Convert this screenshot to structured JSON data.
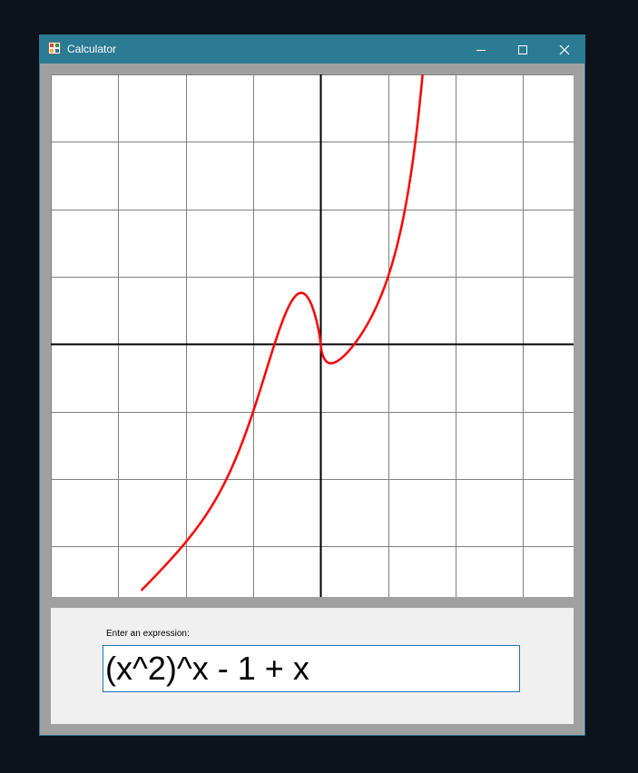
{
  "window": {
    "title": "Calculator",
    "titlebar_color": "#2b7b94",
    "controls": {
      "minimize": "minimize-icon",
      "maximize": "maximize-icon",
      "close": "close-icon"
    }
  },
  "graph": {
    "x_range": [
      -4,
      3.75
    ],
    "y_range": [
      -3.75,
      4
    ],
    "grid": true,
    "grid_color": "#808080",
    "axis_color": "#000000",
    "curve_color": "#ff0000"
  },
  "chart_data": {
    "type": "line",
    "expression": "(x^2)^x - 1 + x",
    "xlim": [
      -4,
      3.75
    ],
    "ylim": [
      -3.75,
      4
    ],
    "grid": true,
    "series": [
      {
        "x_range": [
          -2.66,
          2.5
        ],
        "color": "#ff0000"
      }
    ]
  },
  "input": {
    "label": "Enter an expression:",
    "value": "(x^2)^x - 1 + x"
  }
}
